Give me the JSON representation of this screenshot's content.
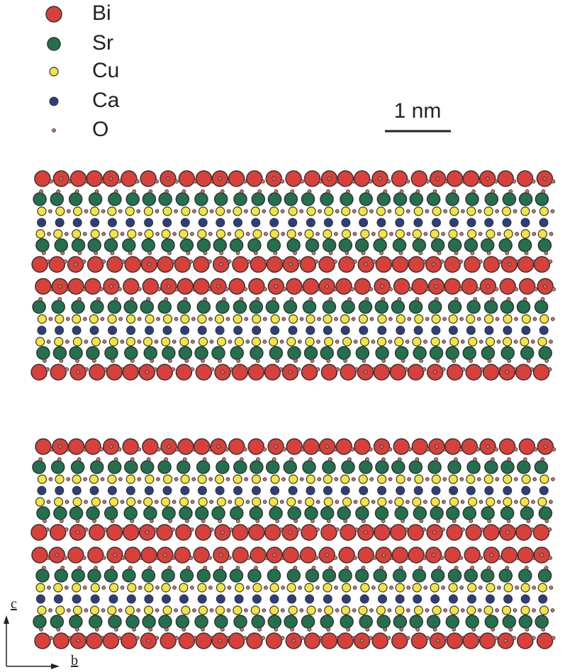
{
  "legend": {
    "items": [
      {
        "label": "Bi"
      },
      {
        "label": "Sr"
      },
      {
        "label": "Cu"
      },
      {
        "label": "Ca"
      },
      {
        "label": "O"
      }
    ]
  },
  "scale_bar": {
    "label": "1 nm"
  },
  "axes": {
    "vertical": "c",
    "horizontal": "b"
  }
}
